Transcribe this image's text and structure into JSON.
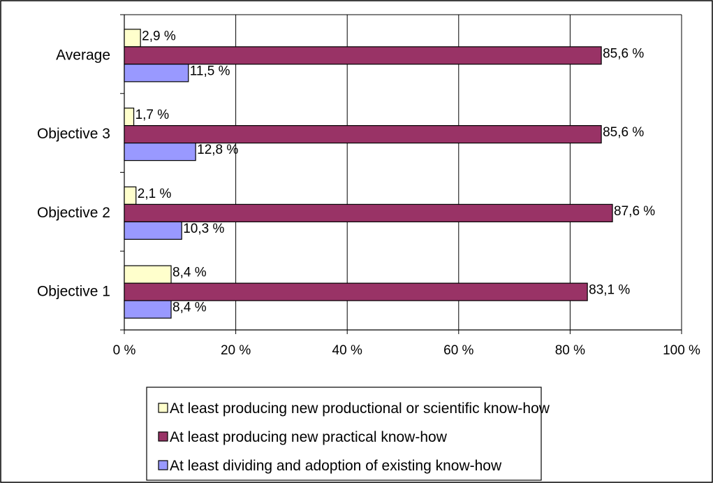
{
  "colors": {
    "series_productional": "#ffffcc",
    "series_practical": "#993366",
    "series_dividing": "#9999ff",
    "grid": "#000000",
    "frame": "#000000"
  },
  "chart_data": {
    "type": "bar",
    "orientation": "horizontal",
    "categories": [
      "Objective 1",
      "Objective 2",
      "Objective 3",
      "Average"
    ],
    "series": [
      {
        "name": "At least producing new productional or scientific know-how",
        "values": [
          8.4,
          2.1,
          1.7,
          2.9
        ],
        "labels": [
          "8,4 %",
          "2,1 %",
          "1,7 %",
          "2,9 %"
        ]
      },
      {
        "name": "At least producing new practical know-how",
        "values": [
          83.1,
          87.6,
          85.6,
          85.6
        ],
        "labels": [
          "83,1 %",
          "87,6 %",
          "85,6 %",
          "85,6 %"
        ]
      },
      {
        "name": "At least dividing and adoption of existing know-how",
        "values": [
          8.4,
          10.3,
          12.8,
          11.5
        ],
        "labels": [
          "8,4 %",
          "10,3 %",
          "12,8 %",
          "11,5 %"
        ]
      }
    ],
    "xlim": [
      0,
      100
    ],
    "x_ticks": [
      0,
      20,
      40,
      60,
      80,
      100
    ],
    "x_tick_labels": [
      "0 %",
      "20 %",
      "40 %",
      "60 %",
      "80 %",
      "100 %"
    ],
    "grid": true,
    "legend_position": "bottom",
    "title": "",
    "xlabel": "",
    "ylabel": ""
  }
}
